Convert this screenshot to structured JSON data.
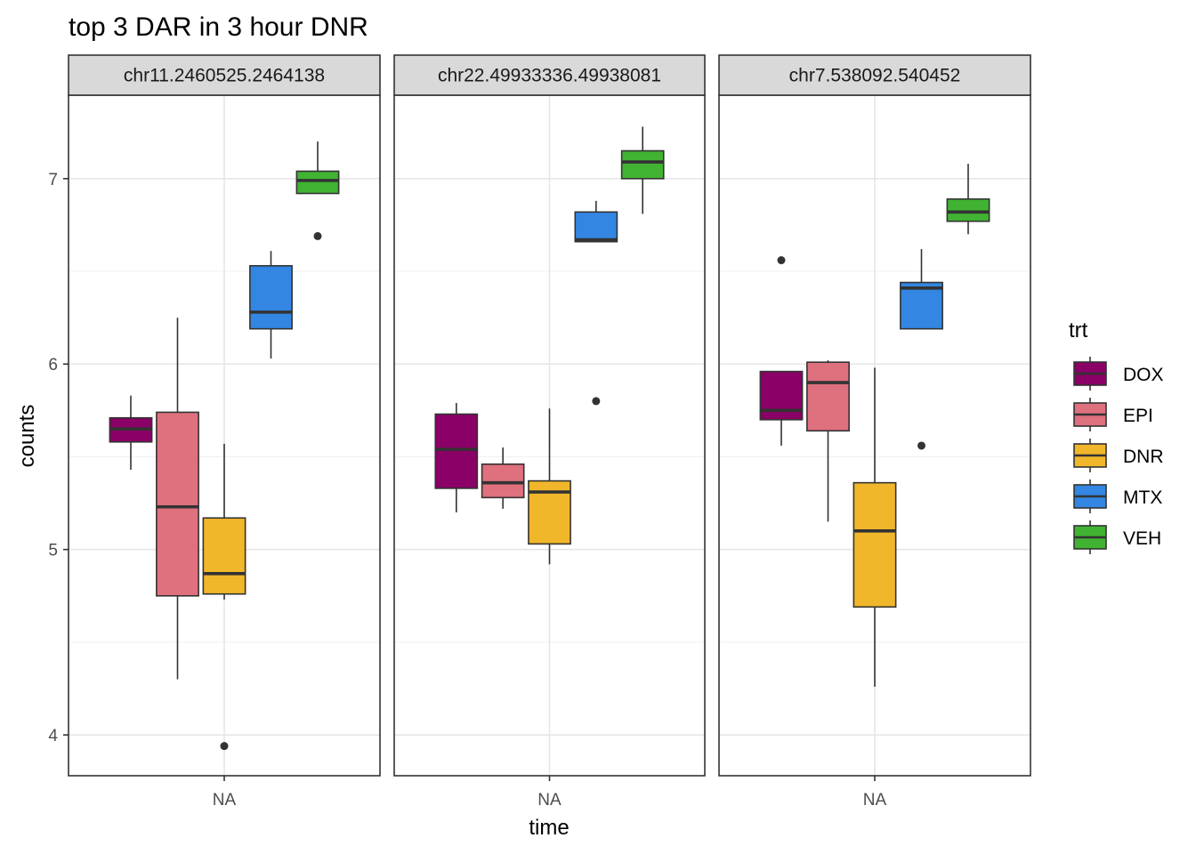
{
  "chart_data": {
    "type": "box",
    "title": "top 3 DAR in 3 hour DNR",
    "xlabel": "time",
    "ylabel": "counts",
    "x_categories": [
      "NA"
    ],
    "y_ticks": [
      4,
      5,
      6,
      7
    ],
    "ylim": [
      3.78,
      7.45
    ],
    "grid": true,
    "legend": {
      "title": "trt",
      "position": "right",
      "entries": [
        {
          "name": "DOX",
          "color": "#8B0066"
        },
        {
          "name": "EPI",
          "color": "#DF707E"
        },
        {
          "name": "DNR",
          "color": "#F1B72B"
        },
        {
          "name": "MTX",
          "color": "#3386E1"
        },
        {
          "name": "VEH",
          "color": "#41B333"
        }
      ]
    },
    "facets": [
      {
        "label": "chr11.2460525.2464138",
        "boxes": [
          {
            "trt": "DOX",
            "whisker_low": 5.43,
            "q1": 5.58,
            "median": 5.65,
            "q3": 5.71,
            "whisker_high": 5.83,
            "outliers": []
          },
          {
            "trt": "EPI",
            "whisker_low": 4.3,
            "q1": 4.75,
            "median": 5.23,
            "q3": 5.74,
            "whisker_high": 6.25,
            "outliers": []
          },
          {
            "trt": "DNR",
            "whisker_low": 4.73,
            "q1": 4.76,
            "median": 4.87,
            "q3": 5.17,
            "whisker_high": 5.57,
            "outliers": [
              3.94
            ]
          },
          {
            "trt": "MTX",
            "whisker_low": 6.03,
            "q1": 6.19,
            "median": 6.28,
            "q3": 6.53,
            "whisker_high": 6.61,
            "outliers": []
          },
          {
            "trt": "VEH",
            "whisker_low": 6.92,
            "q1": 6.92,
            "median": 6.99,
            "q3": 7.04,
            "whisker_high": 7.2,
            "outliers": [
              6.69
            ]
          }
        ]
      },
      {
        "label": "chr22.49933336.49938081",
        "boxes": [
          {
            "trt": "DOX",
            "whisker_low": 5.2,
            "q1": 5.33,
            "median": 5.54,
            "q3": 5.73,
            "whisker_high": 5.79,
            "outliers": []
          },
          {
            "trt": "EPI",
            "whisker_low": 5.22,
            "q1": 5.28,
            "median": 5.36,
            "q3": 5.46,
            "whisker_high": 5.55,
            "outliers": []
          },
          {
            "trt": "DNR",
            "whisker_low": 4.92,
            "q1": 5.03,
            "median": 5.31,
            "q3": 5.37,
            "whisker_high": 5.76,
            "outliers": []
          },
          {
            "trt": "MTX",
            "whisker_low": 6.66,
            "q1": 6.66,
            "median": 6.67,
            "q3": 6.82,
            "whisker_high": 6.88,
            "outliers": [
              5.8
            ]
          },
          {
            "trt": "VEH",
            "whisker_low": 6.81,
            "q1": 7.0,
            "median": 7.09,
            "q3": 7.15,
            "whisker_high": 7.28,
            "outliers": []
          }
        ]
      },
      {
        "label": "chr7.538092.540452",
        "boxes": [
          {
            "trt": "DOX",
            "whisker_low": 5.56,
            "q1": 5.7,
            "median": 5.75,
            "q3": 5.96,
            "whisker_high": 5.96,
            "outliers": [
              6.56
            ]
          },
          {
            "trt": "EPI",
            "whisker_low": 5.15,
            "q1": 5.64,
            "median": 5.9,
            "q3": 6.01,
            "whisker_high": 6.02,
            "outliers": []
          },
          {
            "trt": "DNR",
            "whisker_low": 4.26,
            "q1": 4.69,
            "median": 5.1,
            "q3": 5.36,
            "whisker_high": 5.98,
            "outliers": []
          },
          {
            "trt": "MTX",
            "whisker_low": 6.19,
            "q1": 6.19,
            "median": 6.41,
            "q3": 6.44,
            "whisker_high": 6.62,
            "outliers": [
              5.56
            ]
          },
          {
            "trt": "VEH",
            "whisker_low": 6.7,
            "q1": 6.77,
            "median": 6.82,
            "q3": 6.89,
            "whisker_high": 7.08,
            "outliers": []
          }
        ]
      }
    ]
  }
}
